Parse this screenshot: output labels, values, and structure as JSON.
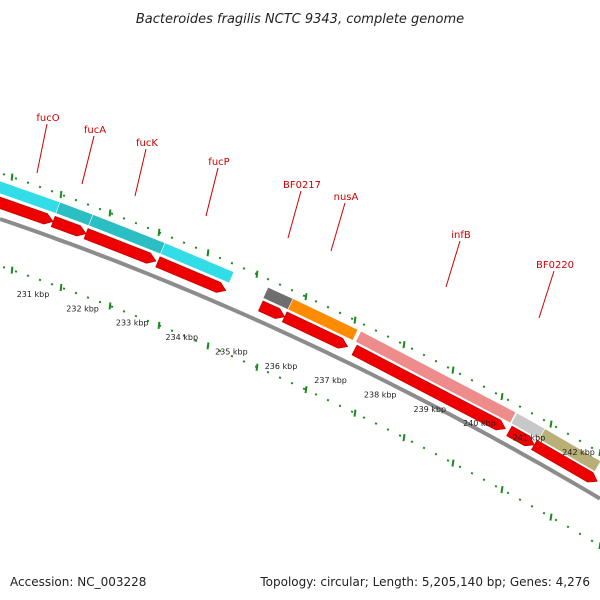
{
  "title": "Bacteroides fragilis NCTC 9343, complete genome",
  "footer": {
    "accession": "Accession: NC_003228",
    "summary": "Topology: circular; Length: 5,205,140 bp; Genes: 4,276"
  },
  "gene_labels": [
    "fucO",
    "fucA",
    "fucK",
    "fucP",
    "BF0217",
    "nusA",
    "infB",
    "BF0220"
  ],
  "kbp_labels": [
    "231 kbp",
    "232 kbp",
    "233 kbp",
    "234 kbp",
    "235 kbp",
    "236 kbp",
    "237 kbp",
    "238 kbp",
    "239 kbp",
    "240 kbp",
    "241 kbp",
    "242 kbp"
  ],
  "colors": {
    "tick_green": "#1a8a1a",
    "backbone": "#8c8c8c",
    "cds_red": "#ee0000",
    "label_red": "#cc0000",
    "cyan": "#33dde8",
    "teal": "#2bbfc4",
    "gray": "#6e6e6e",
    "orange": "#ff8c00",
    "pink": "#ee8c8c",
    "light_gray": "#c8c8c8",
    "olive": "#b8b076"
  }
}
